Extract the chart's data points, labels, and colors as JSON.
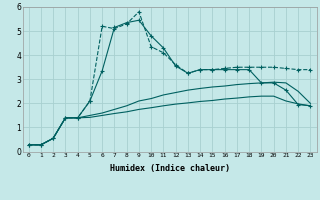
{
  "xlabel": "Humidex (Indice chaleur)",
  "xlim": [
    -0.5,
    23.5
  ],
  "ylim": [
    0,
    6
  ],
  "bg_color": "#c5e8e8",
  "grid_color": "#a8d0d0",
  "line_color": "#006060",
  "x_ticks": [
    0,
    1,
    2,
    3,
    4,
    5,
    6,
    7,
    8,
    9,
    10,
    11,
    12,
    13,
    14,
    15,
    16,
    17,
    18,
    19,
    20,
    21,
    22,
    23
  ],
  "y_ticks": [
    0,
    1,
    2,
    3,
    4,
    5,
    6
  ],
  "s1_x": [
    0,
    1,
    2,
    3,
    4,
    5,
    6,
    7,
    8,
    9,
    10,
    11,
    12,
    13,
    14,
    15,
    16,
    17,
    18,
    19,
    20,
    21,
    22,
    23
  ],
  "s1_y": [
    0.28,
    0.28,
    0.55,
    1.4,
    1.4,
    2.1,
    5.2,
    5.1,
    5.3,
    5.8,
    4.35,
    4.1,
    3.6,
    3.25,
    3.4,
    3.4,
    3.45,
    3.5,
    3.5,
    3.5,
    3.5,
    3.45,
    3.4,
    3.4
  ],
  "s2_x": [
    0,
    1,
    2,
    3,
    4,
    5,
    6,
    7,
    8,
    9,
    10,
    11,
    12,
    13,
    14,
    15,
    16,
    17,
    18,
    19,
    20,
    21,
    22,
    23
  ],
  "s2_y": [
    0.28,
    0.28,
    0.55,
    1.4,
    1.4,
    2.1,
    3.35,
    5.15,
    5.35,
    5.45,
    4.8,
    4.3,
    3.55,
    3.25,
    3.4,
    3.4,
    3.4,
    3.4,
    3.4,
    2.85,
    2.85,
    2.55,
    1.95,
    1.9
  ],
  "s3_x": [
    0,
    1,
    2,
    3,
    4,
    5,
    6,
    7,
    8,
    9,
    10,
    11,
    12,
    13,
    14,
    15,
    16,
    17,
    18,
    19,
    20,
    21,
    22,
    23
  ],
  "s3_y": [
    0.28,
    0.28,
    0.55,
    1.4,
    1.4,
    1.5,
    1.6,
    1.75,
    1.9,
    2.1,
    2.2,
    2.35,
    2.45,
    2.55,
    2.62,
    2.68,
    2.72,
    2.78,
    2.82,
    2.85,
    2.88,
    2.85,
    2.5,
    2.0
  ],
  "s4_x": [
    0,
    1,
    2,
    3,
    4,
    5,
    6,
    7,
    8,
    9,
    10,
    11,
    12,
    13,
    14,
    15,
    16,
    17,
    18,
    19,
    20,
    21,
    22,
    23
  ],
  "s4_y": [
    0.28,
    0.28,
    0.55,
    1.4,
    1.4,
    1.42,
    1.5,
    1.58,
    1.65,
    1.75,
    1.82,
    1.9,
    1.97,
    2.02,
    2.08,
    2.12,
    2.18,
    2.22,
    2.27,
    2.3,
    2.3,
    2.1,
    1.98,
    1.9
  ]
}
